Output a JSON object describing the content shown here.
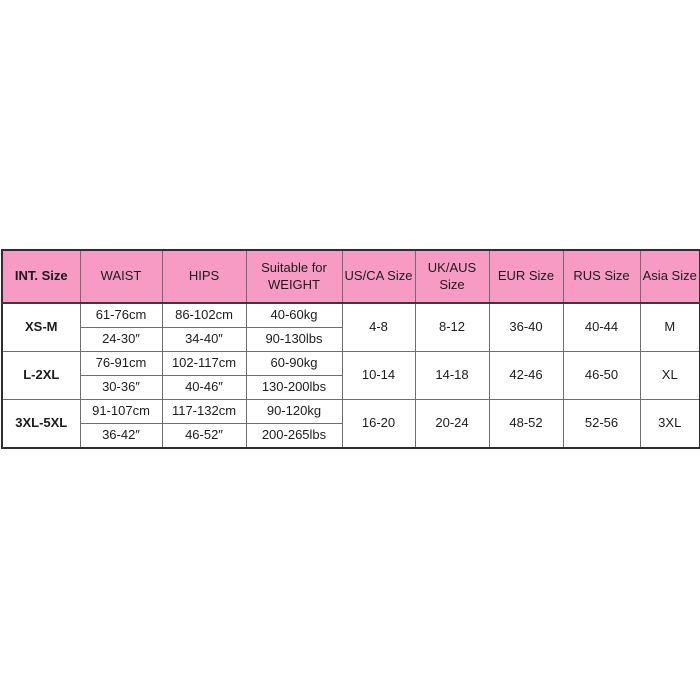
{
  "page": {
    "background_color": "#ffffff"
  },
  "table": {
    "name": "international-size-chart",
    "header_bg_color": "#f79bc5",
    "outer_border_color": "#2f2f2f",
    "grid_color": "#6e6e6e",
    "text_color": "#1c1c1c",
    "columns": [
      "INT. Size",
      "WAIST",
      "HIPS",
      "Suitable for WEIGHT",
      "US/CA Size",
      "UK/AUS Size",
      "EUR Size",
      "RUS Size",
      "Asia Size"
    ],
    "rows": [
      {
        "int_size": "XS-M",
        "waist_cm": "61-76cm",
        "waist_in": "24-30″",
        "hips_cm": "86-102cm",
        "hips_in": "34-40″",
        "weight_kg": "40-60kg",
        "weight_lbs": "90-130lbs",
        "us_ca": "4-8",
        "uk_aus": "8-12",
        "eur": "36-40",
        "rus": "40-44",
        "asia": "M"
      },
      {
        "int_size": "L-2XL",
        "waist_cm": "76-91cm",
        "waist_in": "30-36″",
        "hips_cm": "102-117cm",
        "hips_in": "40-46″",
        "weight_kg": "60-90kg",
        "weight_lbs": "130-200lbs",
        "us_ca": "10-14",
        "uk_aus": "14-18",
        "eur": "42-46",
        "rus": "46-50",
        "asia": "XL"
      },
      {
        "int_size": "3XL-5XL",
        "waist_cm": "91-107cm",
        "waist_in": "36-42″",
        "hips_cm": "117-132cm",
        "hips_in": "46-52″",
        "weight_kg": "90-120kg",
        "weight_lbs": "200-265lbs",
        "us_ca": "16-20",
        "uk_aus": "20-24",
        "eur": "48-52",
        "rus": "52-56",
        "asia": "3XL"
      }
    ]
  }
}
